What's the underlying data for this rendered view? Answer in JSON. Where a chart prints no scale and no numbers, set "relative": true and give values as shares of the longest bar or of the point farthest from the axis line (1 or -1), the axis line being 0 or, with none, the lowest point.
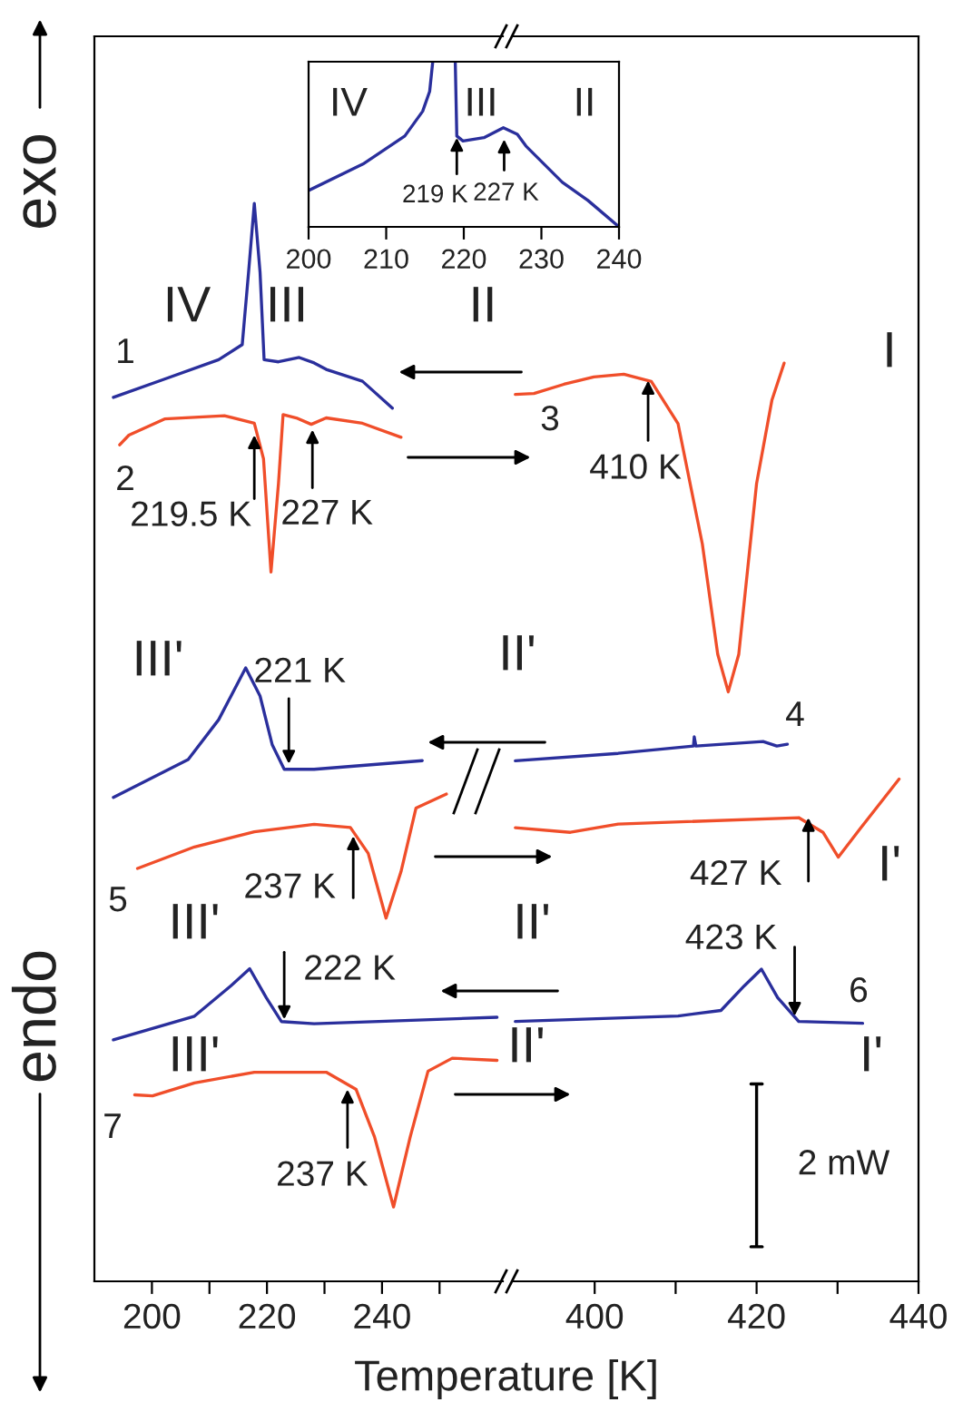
{
  "chart_data": [
    {
      "type": "line",
      "relative": true,
      "xlabel": "Temperature [K]",
      "xlim": [
        190,
        261
      ],
      "xticks": [
        200,
        {
          "value": 210,
          "label": null
        },
        220,
        {
          "value": 230,
          "label": null
        },
        240,
        {
          "value": 250,
          "label": null
        }
      ],
      "tick_labels": "x",
      "series": [
        {
          "color": "#2a2f9c",
          "x": [
            193.3,
            202.2,
            211.6,
            215.7,
            216.8,
            217.8,
            218.8,
            219.5,
            222,
            225.6,
            228.2,
            230.3,
            236.6,
            241.8
          ],
          "values": [
            0.82,
            0.837,
            0.855,
            0.869,
            0.936,
            1.0,
            0.936,
            0.855,
            0.853,
            0.857,
            0.852,
            0.846,
            0.835,
            0.81
          ]
        },
        {
          "color": "#f04e2a",
          "x": [
            194.4,
            196,
            202.2,
            212.6,
            217.8,
            219.4,
            220.7,
            222,
            222.8,
            225.1,
            227.7,
            230.3,
            236.6,
            243.3
          ],
          "values": [
            0.776,
            0.785,
            0.8,
            0.803,
            0.796,
            0.763,
            0.658,
            0.74,
            0.804,
            0.801,
            0.795,
            0.801,
            0.796,
            0.783
          ]
        },
        {
          "color": "#2a2f9c",
          "x": [
            193.3,
            206.3,
            211.6,
            216.3,
            218.8,
            220.9,
            223,
            228.2,
            247
          ],
          "values": [
            0.449,
            0.484,
            0.521,
            0.569,
            0.543,
            0.498,
            0.475,
            0.475,
            0.483
          ]
        },
        {
          "color": "#f04e2a",
          "x": [
            197.5,
            207.4,
            217.8,
            228.2,
            234.5,
            237.6,
            240.7,
            243.3,
            245.9,
            251.2
          ],
          "values": [
            0.383,
            0.403,
            0.417,
            0.424,
            0.421,
            0.397,
            0.337,
            0.38,
            0.439,
            0.452
          ]
        },
        {
          "color": "#2a2f9c",
          "x": [
            193.3,
            207.4,
            213.7,
            217,
            219.9,
            222.5,
            228.2,
            260
          ],
          "values": [
            0.224,
            0.246,
            0.274,
            0.29,
            0.263,
            0.241,
            0.239,
            0.245
          ]
        },
        {
          "color": "#f04e2a",
          "x": [
            197,
            200.1,
            207.4,
            217.8,
            230.3,
            235.5,
            238.7,
            242,
            244.9,
            248,
            252.2,
            260
          ],
          "values": [
            0.173,
            0.172,
            0.184,
            0.194,
            0.194,
            0.178,
            0.134,
            0.069,
            0.134,
            0.195,
            0.207,
            0.205
          ]
        }
      ],
      "annotations": [
        {
          "text": "219.5 K",
          "x": 217.8,
          "y": 0.785
        },
        {
          "text": "227 K",
          "x": 227.9,
          "y": 0.79
        },
        {
          "text": "221 K",
          "x": 223.8,
          "y": 0.48
        },
        {
          "text": "237 K",
          "x": 235,
          "y": 0.413
        },
        {
          "text": "222 K",
          "x": 223,
          "y": 0.243
        },
        {
          "text": "237 K",
          "x": 234,
          "y": 0.178
        },
        "IV",
        "III",
        "II",
        "1",
        "2",
        "III'",
        "5",
        "III'",
        "III'",
        "7",
        "exo",
        "endo"
      ]
    },
    {
      "type": "line",
      "relative": true,
      "xlim": [
        390,
        440
      ],
      "xticks": [
        400,
        {
          "value": 410,
          "label": null
        },
        420,
        {
          "value": 430,
          "label": null
        },
        440
      ],
      "tick_labels": "x",
      "series": [
        {
          "color": "#f04e2a",
          "x": [
            390.2,
            392.5,
            396.2,
            399.9,
            403.6,
            407,
            410.3,
            413.3,
            415.2,
            416.5,
            417.8,
            420,
            421.9,
            423.4
          ],
          "values": [
            0.966,
            0.967,
            0.977,
            0.985,
            0.988,
            0.98,
            0.934,
            0.803,
            0.683,
            0.642,
            0.683,
            0.869,
            0.96,
            1.0
          ]
        },
        {
          "color": "#2a2f9c",
          "x": [
            390.2,
            402.9,
            412.2,
            412.3,
            412.5,
            420.8,
            422.5,
            423.8
          ],
          "values": [
            0.567,
            0.575,
            0.583,
            0.593,
            0.583,
            0.588,
            0.583,
            0.585
          ]
        },
        {
          "color": "#f04e2a",
          "x": [
            390.2,
            397,
            402.9,
            425.2,
            428.2,
            430.1,
            432.7,
            437.6
          ],
          "values": [
            0.494,
            0.489,
            0.498,
            0.505,
            0.489,
            0.462,
            0.492,
            0.547
          ]
        },
        {
          "color": "#2a2f9c",
          "x": [
            390.2,
            410.3,
            415.6,
            418.5,
            420.6,
            422.6,
            425.2,
            433.1
          ],
          "values": [
            0.283,
            0.289,
            0.295,
            0.322,
            0.34,
            0.309,
            0.283,
            0.281
          ]
        },
        {
          "name": "2 mW",
          "color": "#000000",
          "x": [
            419.3,
            420.7,
            420,
            420,
            419.3,
            420.7
          ],
          "values": [
            0.215,
            0.215,
            0.215,
            0.0376,
            0.0376,
            0.0376
          ]
        }
      ],
      "annotations": [
        {
          "text": "410 K",
          "x": 406.6,
          "y": 0.981
        },
        {
          "text": "427 K",
          "x": 426.4,
          "y": 0.505
        },
        {
          "text": "423 K",
          "x": 424.7,
          "y": 0.289
        },
        "I",
        "3",
        "II'",
        "4",
        "I'",
        "II'",
        "6",
        "I'",
        "II'"
      ]
    },
    {
      "type": "line",
      "relative": true,
      "xlim": [
        200,
        240
      ],
      "xticks": [
        200,
        210,
        220,
        230,
        240
      ],
      "tick_labels": "x",
      "series": [
        {
          "color": "#2a2f9c",
          "x": [
            200,
            207,
            212.4,
            214.7,
            215.6,
            216,
            217.5,
            218.9,
            219.1,
            219.9,
            222.6,
            225.1,
            226.9,
            228,
            232.7,
            236,
            240
          ],
          "values": [
            0.22,
            0.38,
            0.55,
            0.7,
            0.82,
            1.0,
            null,
            1.0,
            0.55,
            0.52,
            0.54,
            0.6,
            0.56,
            0.49,
            0.27,
            0.16,
            0
          ]
        }
      ],
      "annotations": [
        {
          "text": "219 K",
          "x": 219.1,
          "y": 0.54
        },
        {
          "text": "227 K",
          "x": 225.2,
          "y": 0.53
        },
        "IV",
        "III",
        "II"
      ]
    }
  ]
}
